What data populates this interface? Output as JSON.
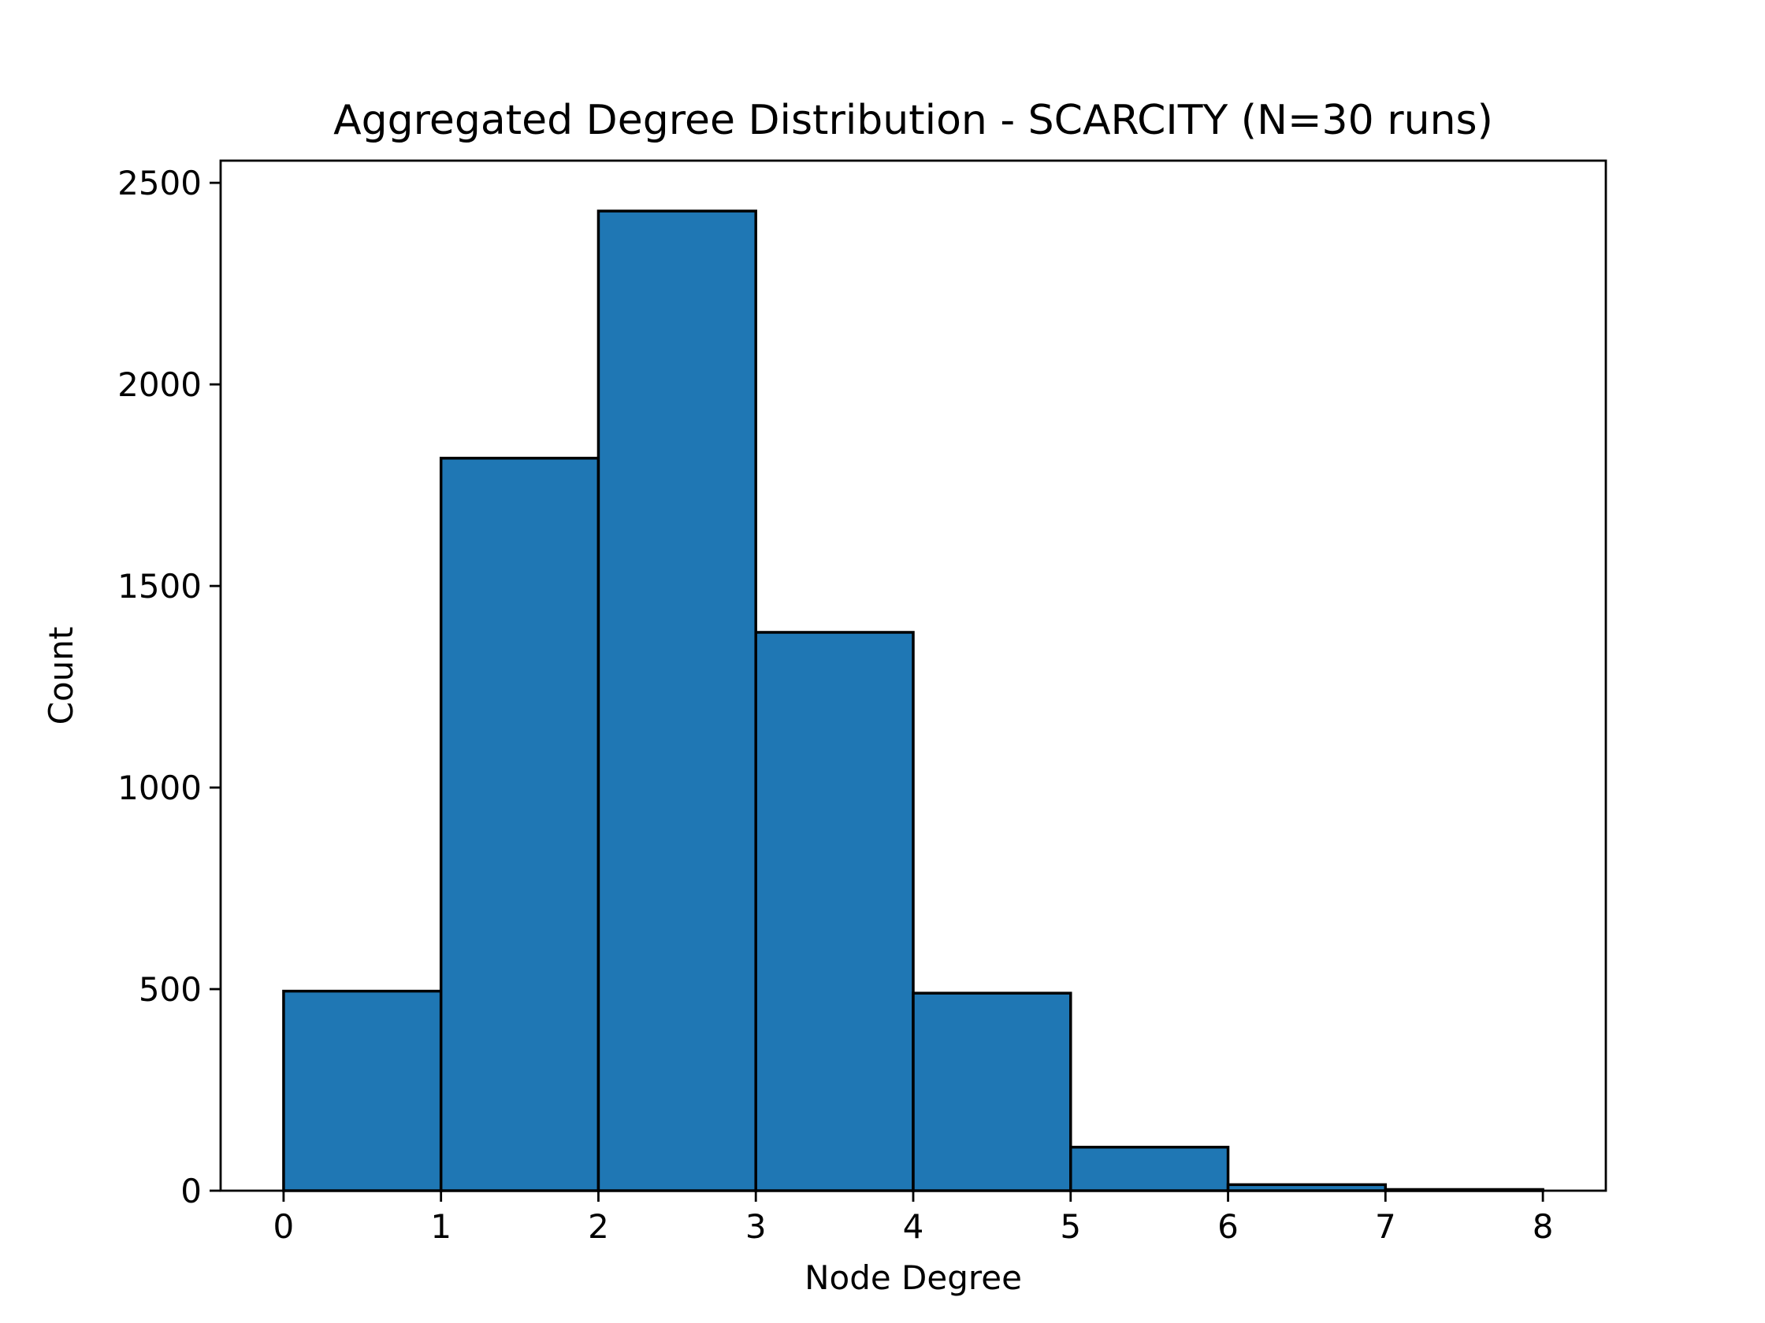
{
  "chart_data": {
    "type": "bar",
    "title": "Aggregated Degree Distribution - SCARCITY (N=30 runs)",
    "xlabel": "Node Degree",
    "ylabel": "Count",
    "bin_edges": [
      0,
      1,
      2,
      3,
      4,
      5,
      6,
      7,
      8
    ],
    "values": [
      495,
      1817,
      2430,
      1385,
      490,
      108,
      15,
      3
    ],
    "xlim": [
      -0.4,
      8.4
    ],
    "ylim": [
      0,
      2555
    ],
    "xticks": [
      0,
      1,
      2,
      3,
      4,
      5,
      6,
      7,
      8
    ],
    "yticks": [
      0,
      500,
      1000,
      1500,
      2000,
      2500
    ],
    "bar_color": "#1f77b4",
    "edge_color": "#000000",
    "grid": false,
    "legend": "none"
  }
}
